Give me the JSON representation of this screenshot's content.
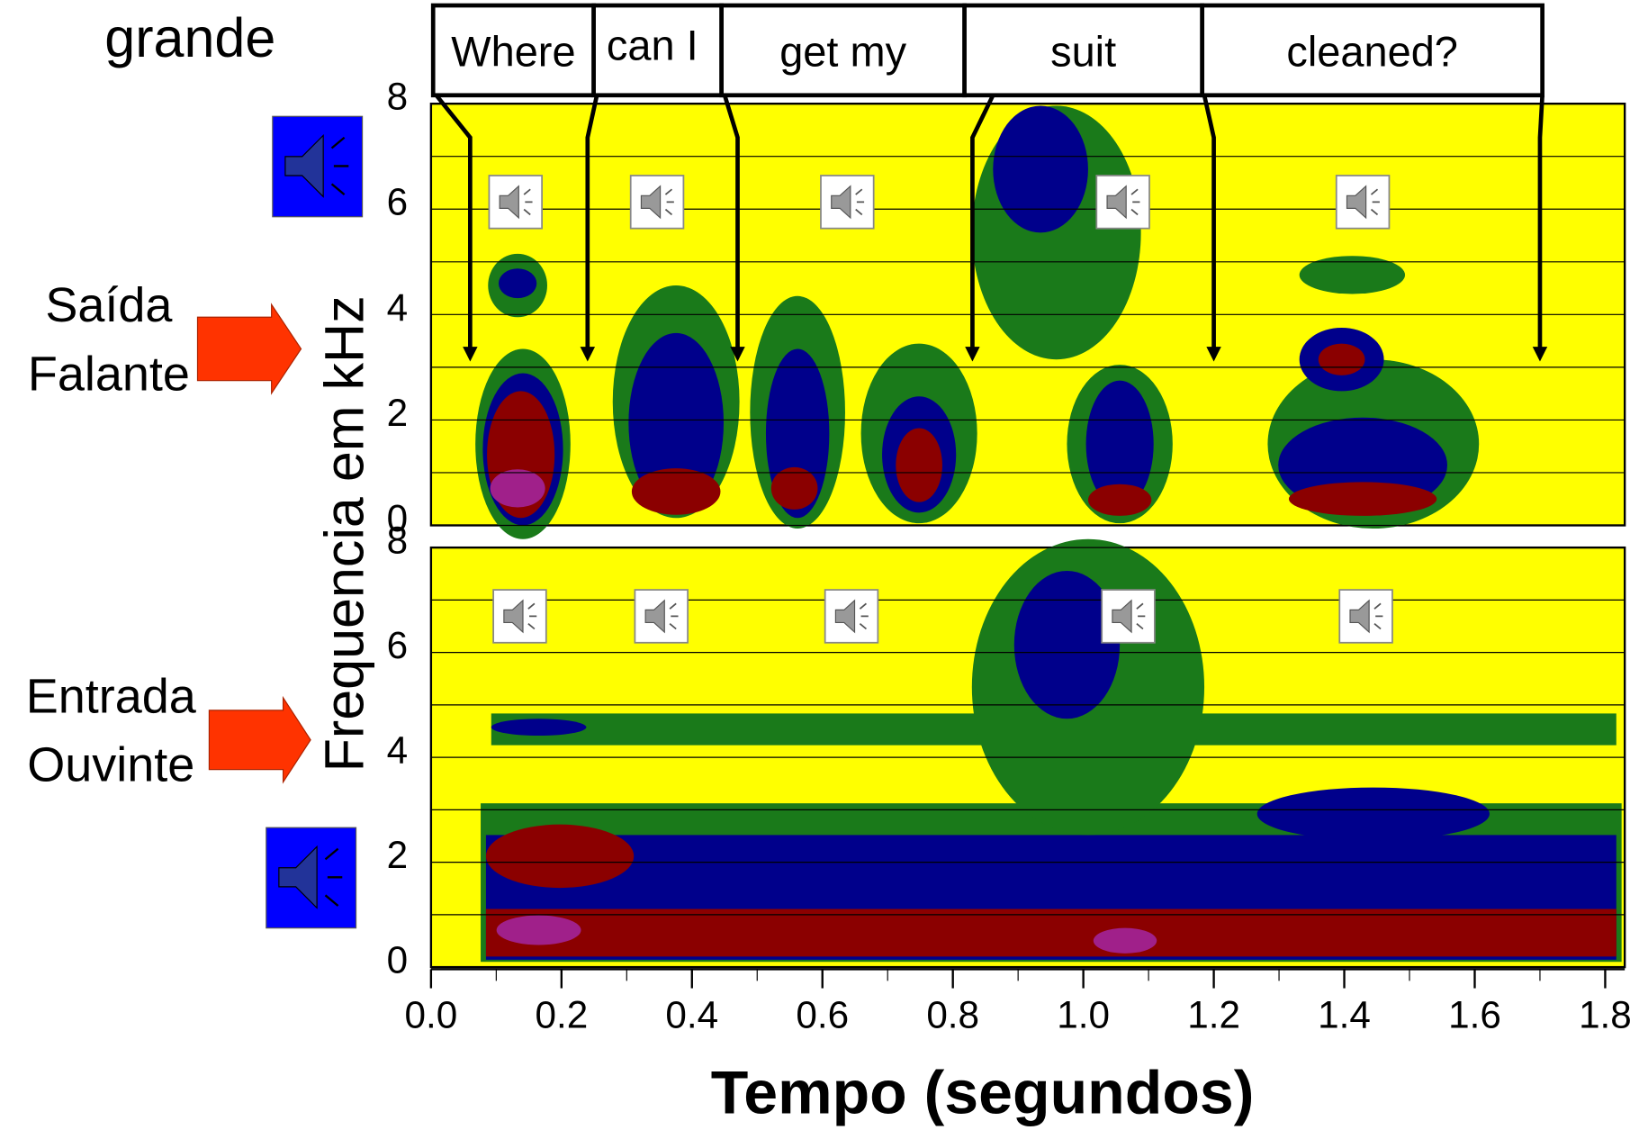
{
  "chart_data": {
    "type": "spectrogram",
    "title": "grande",
    "words": [
      "Where",
      "can I",
      "get my",
      "suit",
      "cleaned?"
    ],
    "word_boundaries": [
      0.06,
      0.24,
      0.47,
      0.83,
      1.2,
      1.7
    ],
    "panels": [
      {
        "label": [
          "Saída",
          "Falante"
        ]
      },
      {
        "label": [
          "Entrada",
          "Ouvinte"
        ]
      }
    ],
    "ylabel": "Frequencia em kHz",
    "xlabel": "Tempo (segundos)",
    "xlim": [
      0,
      1.83
    ],
    "xticks": [
      {
        "value": 0,
        "label": "0.0"
      },
      {
        "value": 0.2,
        "label": "0.2"
      },
      {
        "value": 0.4,
        "label": "0.4"
      },
      {
        "value": 0.6,
        "label": "0.6"
      },
      {
        "value": 0.8,
        "label": "0.8"
      },
      {
        "value": 1.0,
        "label": "1.0"
      },
      {
        "value": 1.2,
        "label": "1.2"
      },
      {
        "value": 1.4,
        "label": "1.4"
      },
      {
        "value": 1.6,
        "label": "1.6"
      },
      {
        "value": 1.8,
        "label": "1.8"
      }
    ],
    "ylim": [
      0,
      8
    ],
    "yticks": [
      0,
      2,
      4,
      6,
      8
    ]
  }
}
